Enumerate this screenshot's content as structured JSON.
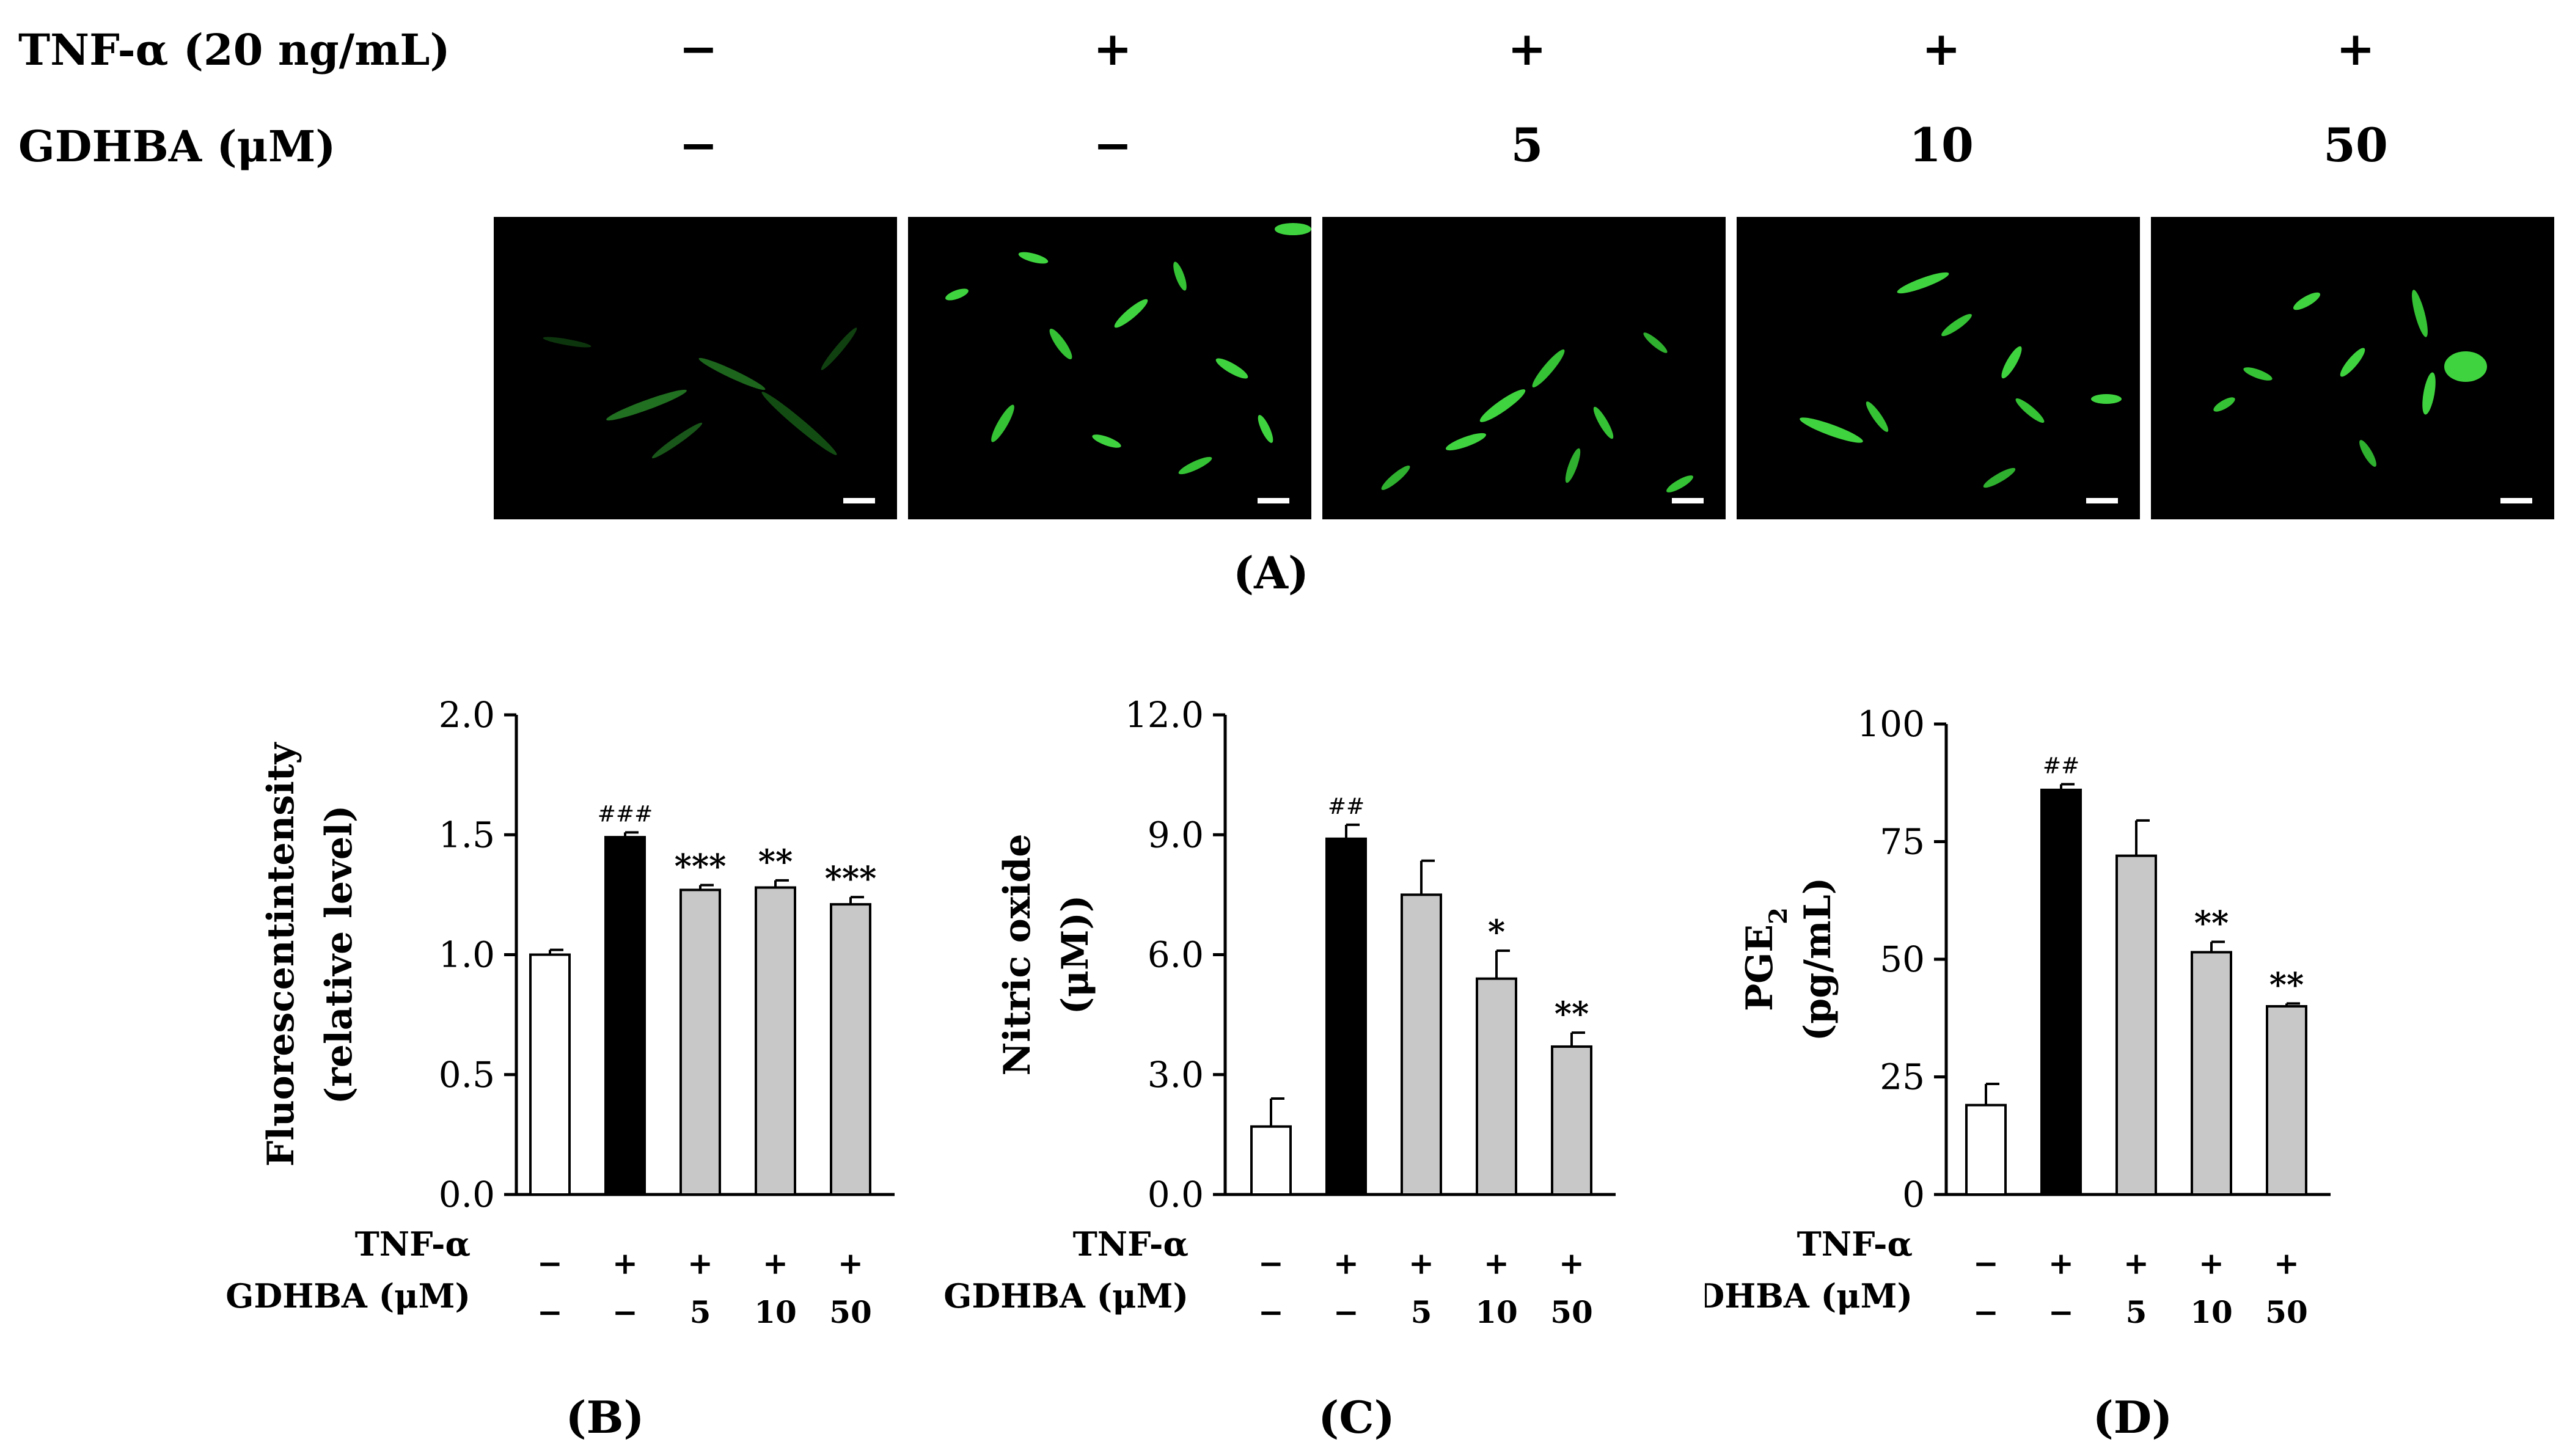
{
  "panel_a": {
    "rows": [
      {
        "label": "TNF-α (20 ng/mL)",
        "values": [
          "−",
          "+",
          "+",
          "+",
          "+"
        ]
      },
      {
        "label": "GDHBA (μM)",
        "values": [
          "−",
          "−",
          "5",
          "10",
          "50"
        ]
      }
    ],
    "label": "(A)"
  },
  "chart_data": [
    {
      "type": "bar",
      "panel_label": "(B)",
      "ylabel_line1": "Fluorescentintensity",
      "ylabel_line2": "(relative level)",
      "ylim": [
        0,
        2.0
      ],
      "yticks": [
        "0.0",
        "0.5",
        "1.0",
        "1.5",
        "2.0"
      ],
      "values": [
        1.0,
        1.49,
        1.27,
        1.28,
        1.21
      ],
      "errors": [
        0.02,
        0.02,
        0.02,
        0.03,
        0.03
      ],
      "colors": [
        "#ffffff",
        "#000000",
        "#c8c8c8",
        "#c8c8c8",
        "#c8c8c8"
      ],
      "annotations": [
        "",
        "###",
        "***",
        "**",
        "***"
      ],
      "row1_label": "TNF-α",
      "row1": [
        "−",
        "+",
        "+",
        "+",
        "+"
      ],
      "row2_label": "GDHBA (μM)",
      "row2": [
        "−",
        "−",
        "5",
        "10",
        "50"
      ]
    },
    {
      "type": "bar",
      "panel_label": "(C)",
      "ylabel_line1": "Nitric oxide",
      "ylabel_line2": "(μM))",
      "ylim": [
        0,
        12.0
      ],
      "yticks": [
        "0.0",
        "3.0",
        "6.0",
        "9.0",
        "12.0"
      ],
      "values": [
        1.7,
        8.9,
        7.5,
        5.4,
        3.7
      ],
      "errors": [
        0.7,
        0.35,
        0.85,
        0.7,
        0.35
      ],
      "colors": [
        "#ffffff",
        "#000000",
        "#c8c8c8",
        "#c8c8c8",
        "#c8c8c8"
      ],
      "annotations": [
        "",
        "##",
        "",
        "*",
        "**"
      ],
      "row1_label": "TNF-α",
      "row1": [
        "−",
        "+",
        "+",
        "+",
        "+"
      ],
      "row2_label": "GDHBA (μM)",
      "row2": [
        "−",
        "−",
        "5",
        "10",
        "50"
      ]
    },
    {
      "type": "bar",
      "panel_label": "(D)",
      "ylabel_line1": "PGE",
      "ylabel_sub": "2",
      "ylabel_line2": "(pg/mL)",
      "ylim": [
        0,
        100
      ],
      "yticks": [
        "0",
        "25",
        "50",
        "75",
        "100"
      ],
      "values": [
        19,
        86,
        72,
        51.5,
        40
      ],
      "errors": [
        4.5,
        1.2,
        7.5,
        2.2,
        0.6
      ],
      "colors": [
        "#ffffff",
        "#000000",
        "#c8c8c8",
        "#c8c8c8",
        "#c8c8c8"
      ],
      "annotations": [
        "",
        "##",
        "",
        "**",
        "**"
      ],
      "row1_label": "TNF-α",
      "row1": [
        "−",
        "+",
        "+",
        "+",
        "+"
      ],
      "row2_label": "GDHBA (μM)",
      "row2": [
        "−",
        "−",
        "5",
        "10",
        "50"
      ]
    }
  ]
}
